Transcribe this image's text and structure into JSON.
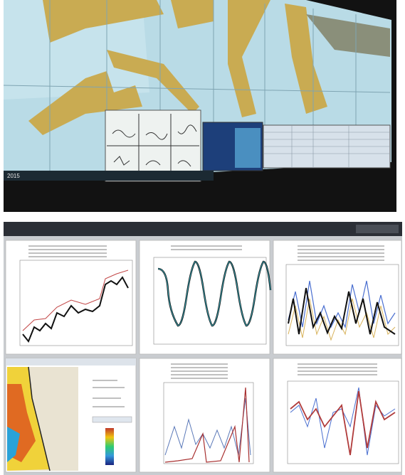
{
  "photo": {
    "caption": "2015"
  }
}
